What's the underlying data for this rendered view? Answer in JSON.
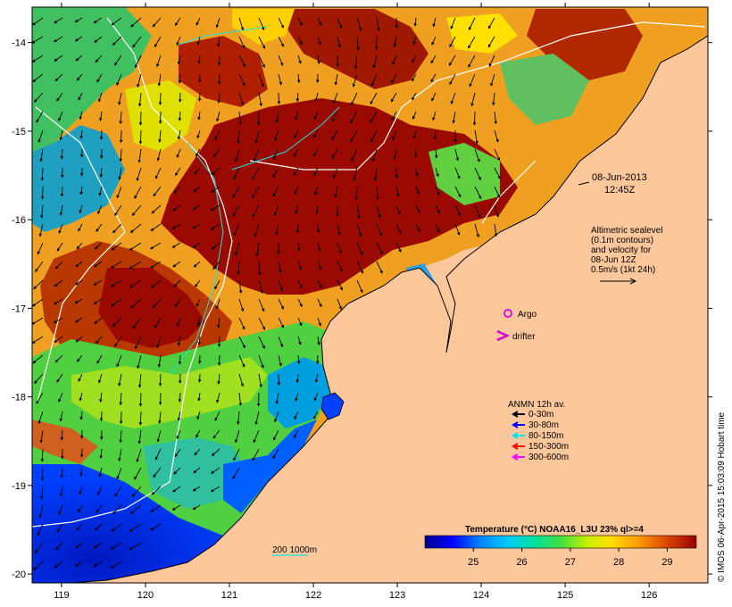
{
  "map": {
    "lon_range": [
      118.65,
      126.7
    ],
    "lat_range": [
      -20.1,
      -13.6
    ],
    "lon_ticks": [
      "119",
      "120",
      "121",
      "122",
      "123",
      "124",
      "125",
      "126"
    ],
    "lat_ticks": [
      "-14",
      "-15",
      "-16",
      "-17",
      "-18",
      "-19",
      "-20"
    ],
    "land_color": "#fcc89b"
  },
  "date_label": {
    "line1": "08-Jun-2013",
    "line2": "12:45Z"
  },
  "altimetry": {
    "lines": [
      "Altimetric sealevel",
      "(0.1m contours)",
      "and velocity for",
      "08-Jun 12Z",
      "0.5m/s (1kt 24h)"
    ]
  },
  "argo": {
    "label": "Argo",
    "color": "#e000e0"
  },
  "drifter": {
    "label": "drifter",
    "color": "#e000e0"
  },
  "anmn": {
    "title": "ANMN 12h av.",
    "items": [
      {
        "label": "0-30m",
        "color": "#000000"
      },
      {
        "label": "30-80m",
        "color": "#0000ff"
      },
      {
        "label": "80-150m",
        "color": "#00e5e5"
      },
      {
        "label": "150-300m",
        "color": "#ff0000"
      },
      {
        "label": "300-600m",
        "color": "#ff00ff"
      }
    ]
  },
  "scale_bar": {
    "label": "200  1000m"
  },
  "colorbar": {
    "title": "Temperature (°C) NOAA16_L3U 23% ql>=4",
    "range": [
      24.0,
      29.6
    ],
    "ticks": [
      "25",
      "26",
      "27",
      "28",
      "29"
    ]
  },
  "credit": "© IMOS 06-Apr-2015 15:03:09 Hobart time"
}
